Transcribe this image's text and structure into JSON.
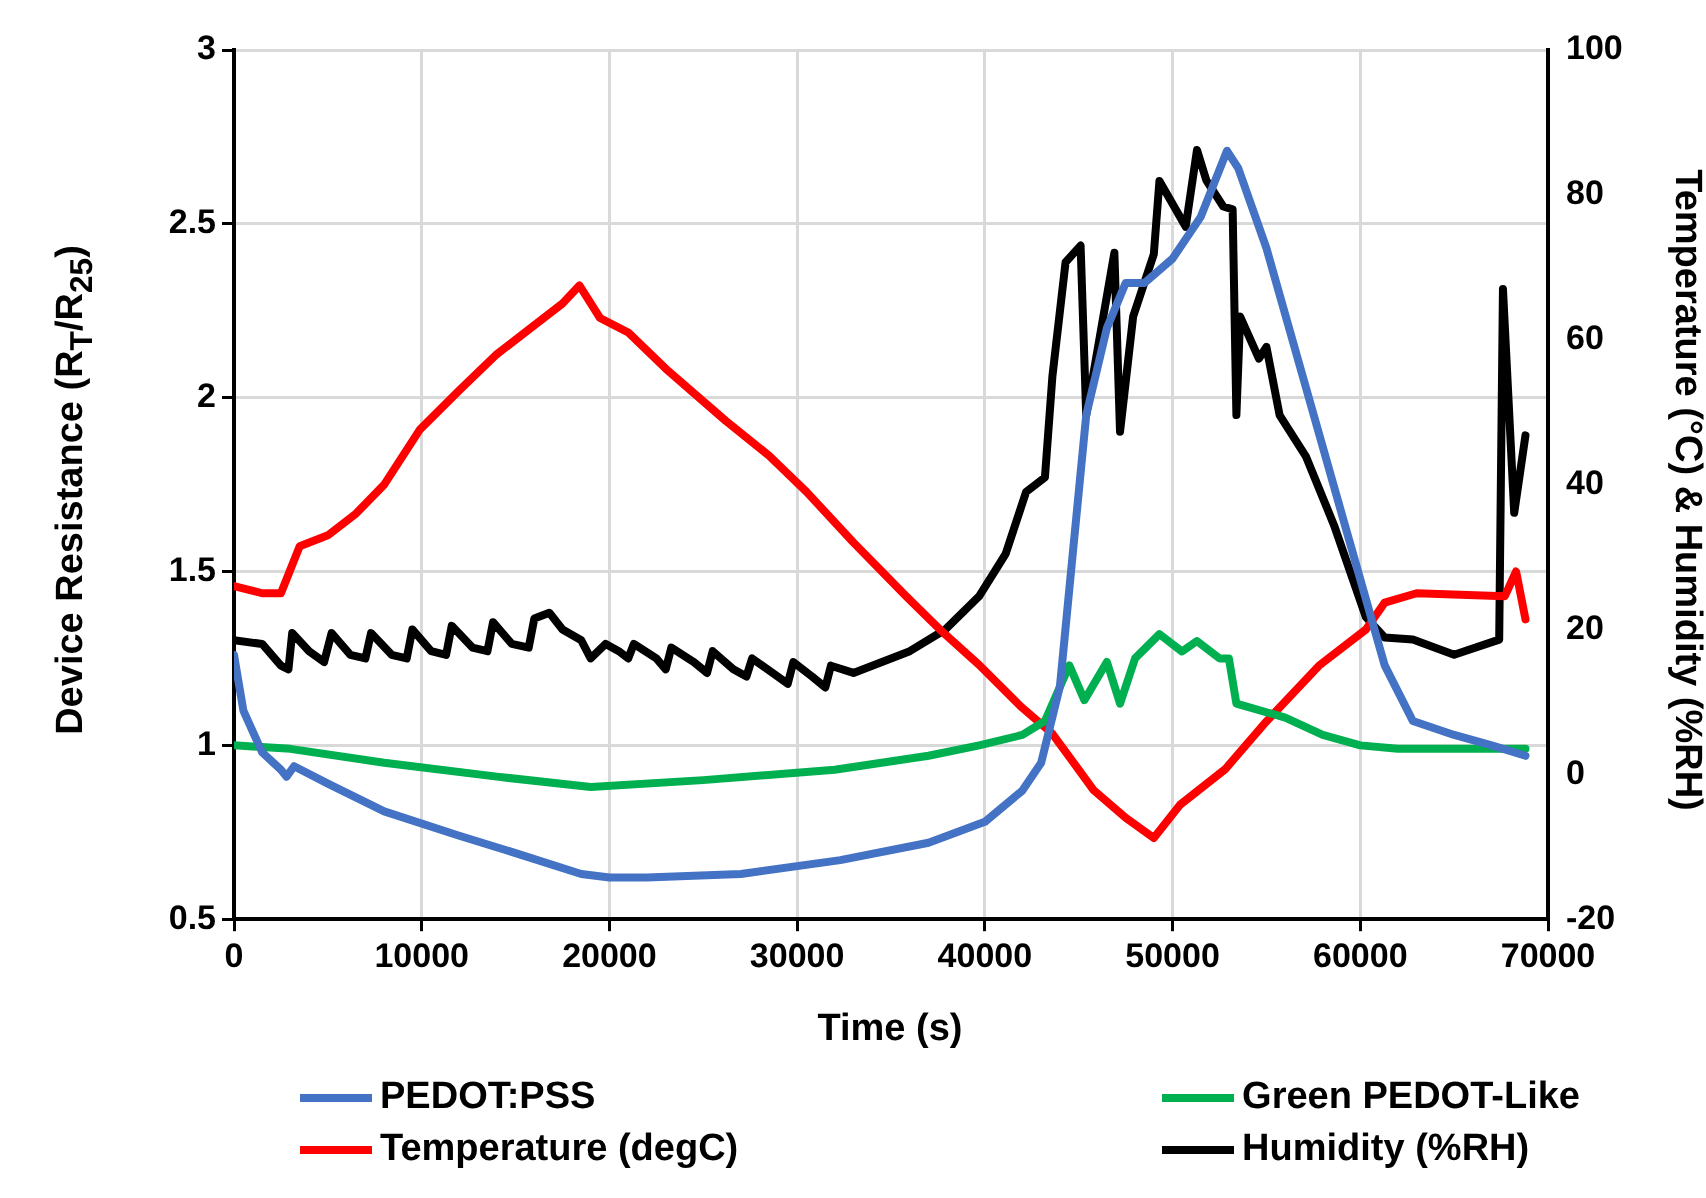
{
  "chart_data": {
    "type": "line",
    "xlabel": "Time (s)",
    "ylabel": "Device Resistance (R$_{T}$/R$_{25}$)",
    "y2label": "Temperature (°C) & Humidity (%RH)",
    "xlim": [
      0,
      70000
    ],
    "xticks": [
      0,
      10000,
      20000,
      30000,
      40000,
      50000,
      60000,
      70000
    ],
    "ylim": [
      0.5,
      3
    ],
    "yticks": [
      0.5,
      1,
      1.5,
      2,
      2.5,
      3
    ],
    "y2lim": [
      -20,
      100
    ],
    "y2ticks": [
      -20,
      0,
      20,
      40,
      60,
      80,
      100
    ],
    "grid": true,
    "legend": "bottom",
    "line_style": "solid",
    "series": [
      {
        "name": "PEDOT:PSS",
        "color": "#4472c4",
        "x": [
          0,
          500,
          1500,
          2500,
          2800,
          3200,
          5000,
          8000,
          12000,
          15000,
          18500,
          20000,
          22000,
          27000,
          32300,
          37000,
          40000,
          42000,
          43000,
          44000,
          44500,
          45400,
          46500,
          47500,
          48500,
          50000,
          51500,
          52900,
          53500,
          55000,
          57100,
          59200,
          61300,
          62800,
          65000,
          67000,
          68800
        ],
        "values": [
          1.26,
          1.1,
          0.98,
          0.93,
          0.91,
          0.94,
          0.89,
          0.81,
          0.74,
          0.69,
          0.63,
          0.62,
          0.62,
          0.63,
          0.67,
          0.72,
          0.78,
          0.87,
          0.95,
          1.17,
          1.45,
          1.95,
          2.2,
          2.33,
          2.33,
          2.4,
          2.52,
          2.71,
          2.66,
          2.43,
          2.03,
          1.63,
          1.23,
          1.07,
          1.03,
          1.0,
          0.97
        ]
      },
      {
        "name": "Green PEDOT-Like",
        "color": "#00b050",
        "x": [
          0,
          3000,
          8000,
          14000,
          19000,
          25000,
          32000,
          37000,
          39700,
          42000,
          43200,
          44500,
          45300,
          46500,
          47200,
          48000,
          49300,
          50500,
          51300,
          52500,
          53000,
          53400,
          56000,
          58000,
          60000,
          62000,
          65000,
          68800
        ],
        "values": [
          1.0,
          0.99,
          0.95,
          0.91,
          0.88,
          0.9,
          0.93,
          0.97,
          1.0,
          1.03,
          1.07,
          1.23,
          1.13,
          1.24,
          1.12,
          1.25,
          1.32,
          1.27,
          1.3,
          1.25,
          1.25,
          1.12,
          1.08,
          1.03,
          1.0,
          0.99,
          0.99,
          0.99
        ]
      },
      {
        "name": "Temperature (degC)",
        "color": "#ff0000",
        "axis": "y2",
        "x": [
          0,
          1500,
          2500,
          3500,
          5000,
          6500,
          8000,
          9900,
          12000,
          14000,
          16000,
          17500,
          18400,
          19500,
          21000,
          23000,
          26200,
          28500,
          30500,
          33000,
          35800,
          37600,
          39700,
          41900,
          43600,
          45800,
          47500,
          49000,
          50400,
          52800,
          55000,
          57800,
          60300,
          61300,
          63000,
          67700,
          68300,
          68800
        ],
        "values": [
          26,
          25,
          25,
          31.5,
          33,
          36,
          40,
          47.6,
          53,
          58,
          62,
          65,
          67.5,
          63,
          61,
          56,
          48.8,
          44,
          39,
          32,
          24.6,
          20,
          15.1,
          9.4,
          5.6,
          -2.2,
          -6,
          -8.8,
          -4.2,
          0.7,
          7.3,
          15,
          20,
          23.7,
          25,
          24.6,
          28,
          21.4
        ]
      },
      {
        "name": "Humidity (%RH)",
        "color": "#000000",
        "axis": "y2",
        "x": [
          0,
          1500,
          2500,
          2900,
          3100,
          4000,
          4800,
          5200,
          6200,
          7000,
          7300,
          8400,
          9200,
          9500,
          10500,
          11300,
          11600,
          12700,
          13500,
          13800,
          14800,
          15700,
          16000,
          16800,
          17500,
          18500,
          19000,
          19800,
          20500,
          21000,
          21300,
          22500,
          23000,
          23300,
          24500,
          25200,
          25500,
          26600,
          27300,
          27600,
          28700,
          29500,
          29800,
          30800,
          31500,
          31800,
          33000,
          35000,
          36000,
          37900,
          39700,
          41100,
          42200,
          43200,
          43600,
          44300,
          45100,
          45400,
          46900,
          47200,
          47900,
          49000,
          49300,
          50700,
          51300,
          51800,
          52700,
          53200,
          53400,
          53600,
          54600,
          55000,
          55700,
          57100,
          58600,
          60300,
          61300,
          62800,
          65000,
          67400,
          67600,
          68200,
          68800
        ],
        "values": [
          18.5,
          18,
          15,
          14.5,
          19.5,
          17,
          15.5,
          19.5,
          16.5,
          16,
          19.5,
          16.5,
          16,
          20,
          17,
          16.5,
          20.5,
          17.5,
          17,
          21,
          18,
          17.5,
          21.5,
          22.3,
          20,
          18.5,
          16,
          18,
          17,
          16,
          18,
          16,
          14.5,
          17.5,
          15.5,
          14,
          17,
          14.5,
          13.5,
          16,
          14,
          12.5,
          15.5,
          13.5,
          12,
          15,
          14,
          16,
          17,
          20,
          24.6,
          30.4,
          39,
          41,
          55,
          70.7,
          73,
          49.6,
          72,
          47.3,
          63.2,
          71.8,
          81.9,
          75.6,
          86.2,
          82,
          78.4,
          78,
          49.6,
          63.2,
          57.4,
          59,
          49.6,
          43.9,
          34.4,
          21.7,
          18.9,
          18.6,
          16.5,
          18.6,
          67,
          36.1,
          46.8
        ]
      }
    ]
  }
}
